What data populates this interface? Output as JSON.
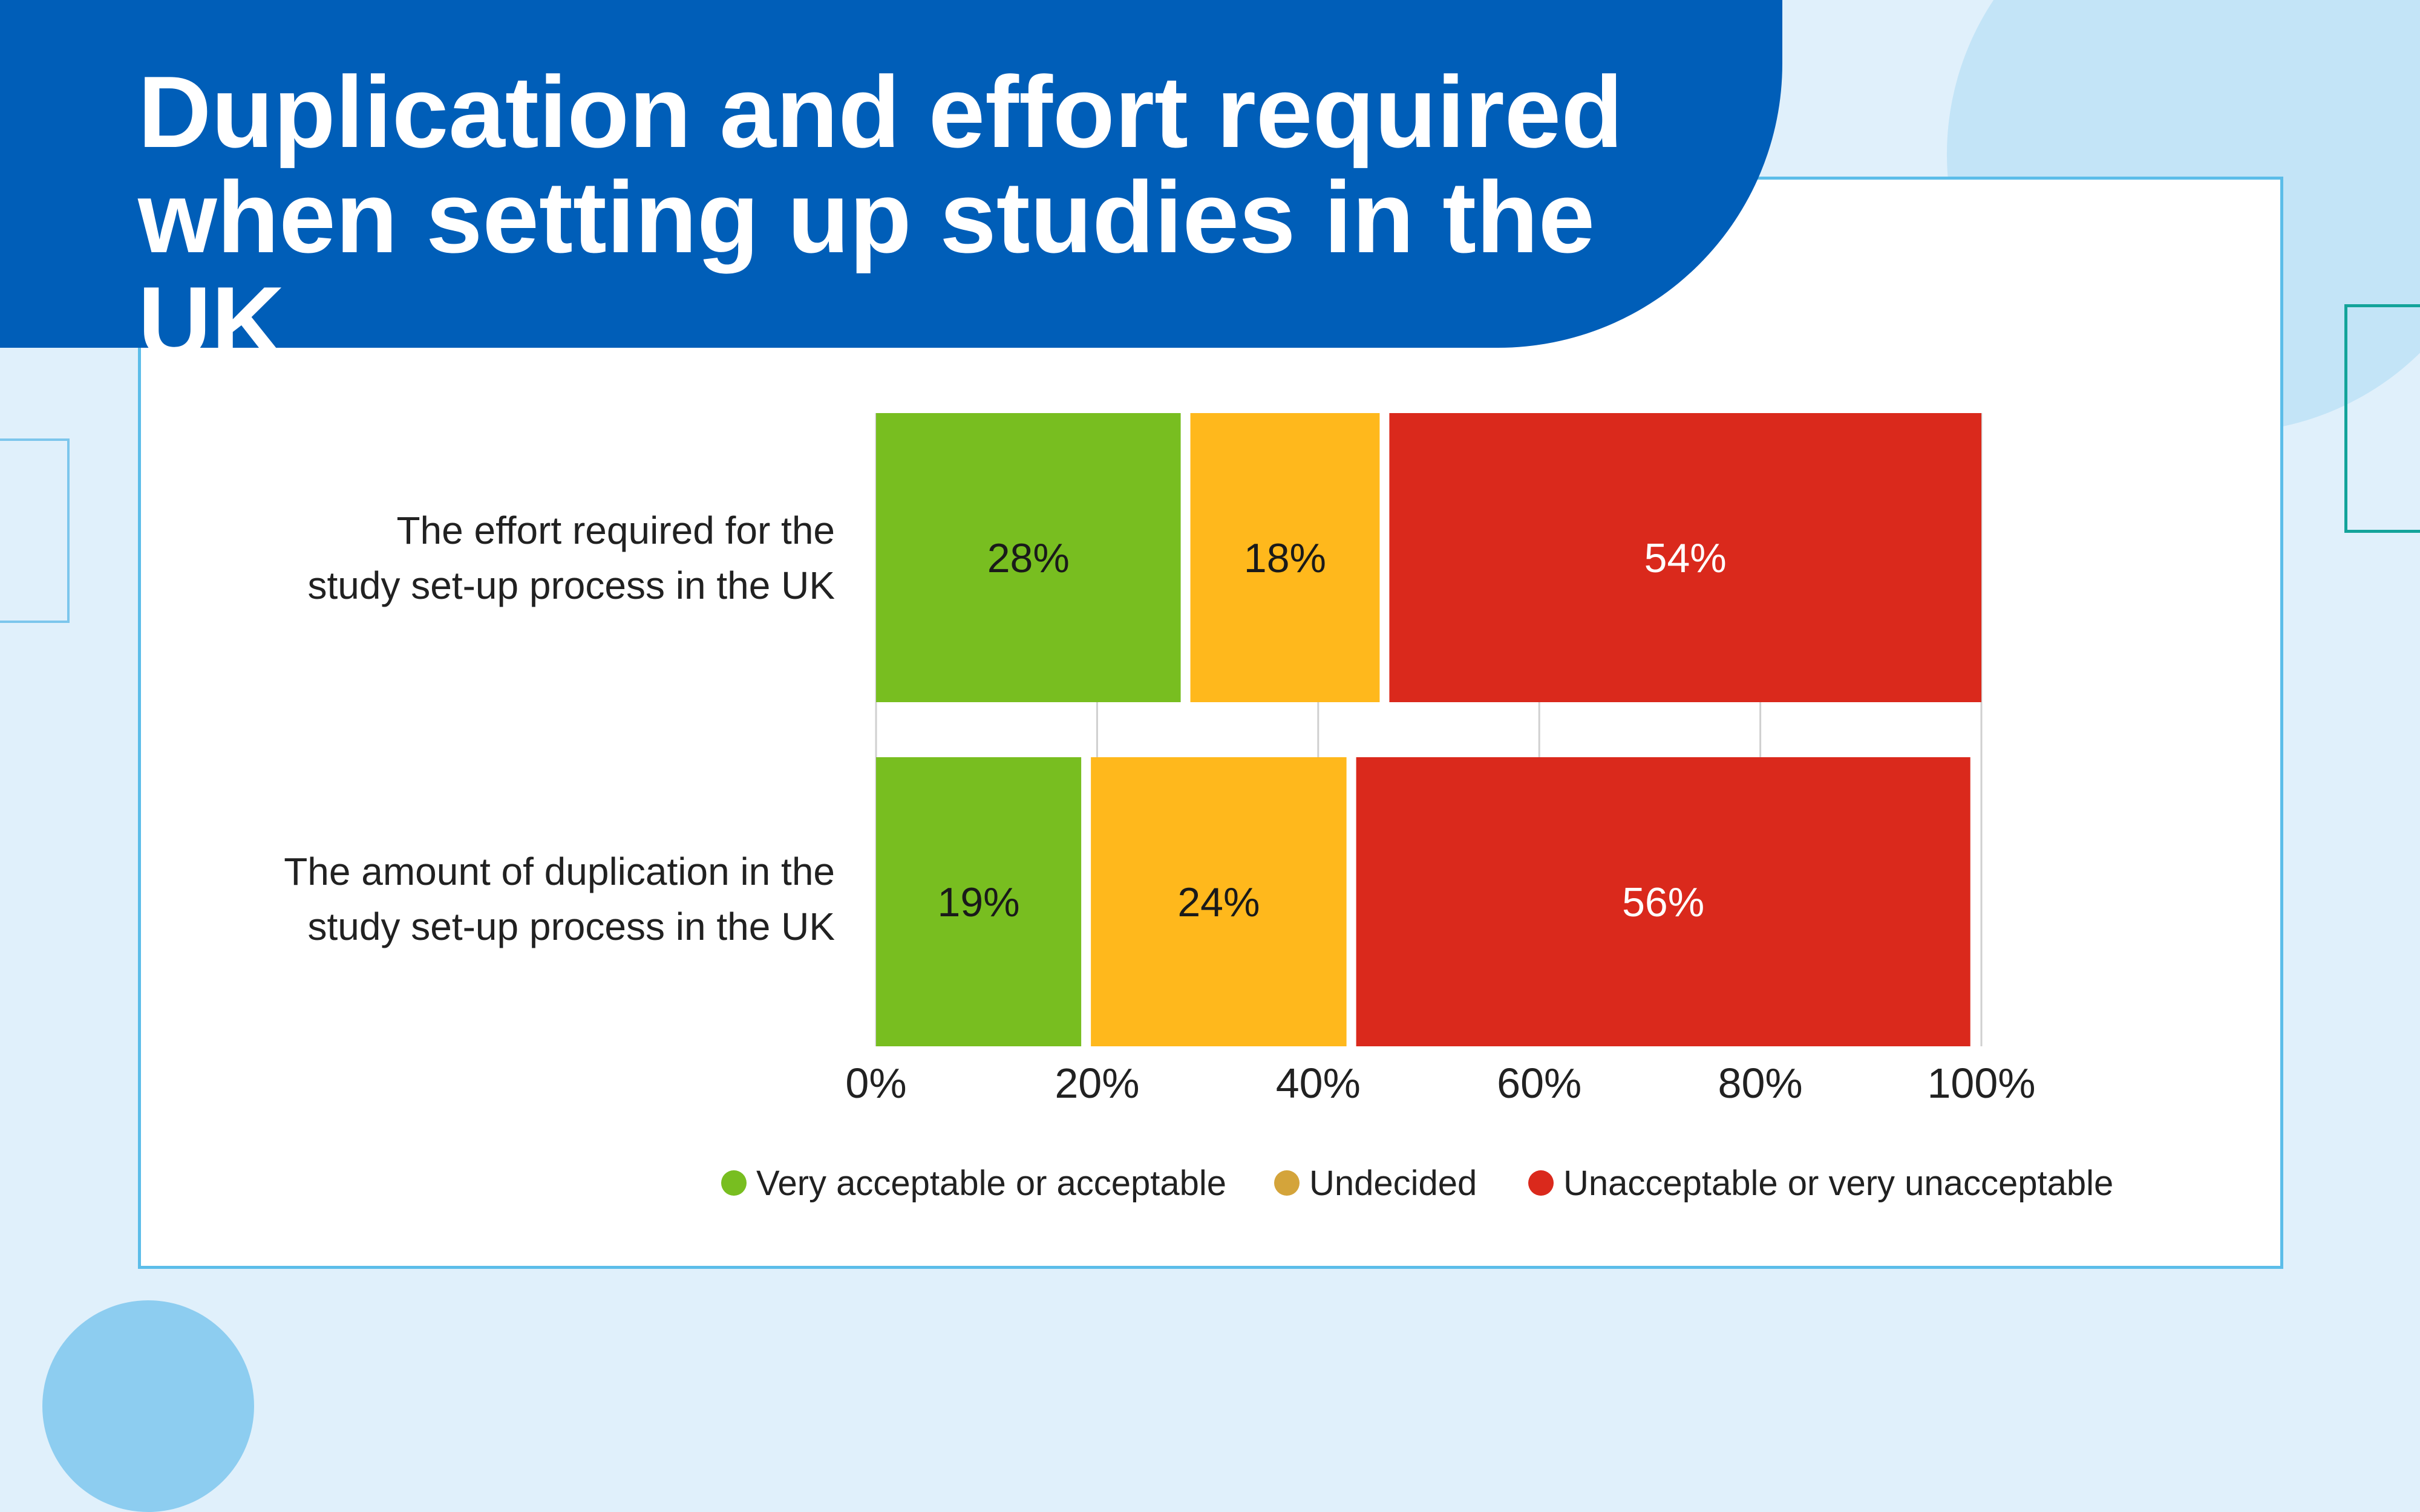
{
  "title_line1": "Duplication and effort required",
  "title_line2": "when setting up studies in the UK",
  "colors": {
    "header": "#005eb8",
    "acceptable": "#78be20",
    "undecided": "#ffb81c",
    "unacceptable": "#da291c",
    "legend_undecided_dot": "#d4a43a"
  },
  "chart_data": {
    "type": "bar",
    "orientation": "horizontal",
    "stacked": true,
    "categories": [
      "The effort required for the study set-up process in the UK",
      "The amount of duplication in the study set-up process in the UK"
    ],
    "category_lines": [
      [
        "The effort required for the",
        "study set-up process in the UK"
      ],
      [
        "The amount of duplication in the",
        "study set-up process in the UK"
      ]
    ],
    "series": [
      {
        "name": "Very acceptable or acceptable",
        "values": [
          28,
          19
        ],
        "labels": [
          "28%",
          "19%"
        ]
      },
      {
        "name": "Undecided",
        "values": [
          18,
          24
        ],
        "labels": [
          "18%",
          "24%"
        ]
      },
      {
        "name": "Unacceptable or very unacceptable",
        "values": [
          54,
          56
        ],
        "labels": [
          "54%",
          "56%"
        ]
      }
    ],
    "x_ticks": [
      "0%",
      "20%",
      "40%",
      "60%",
      "80%",
      "100%"
    ],
    "xlim": [
      0,
      100
    ],
    "grid": true,
    "legend_position": "bottom"
  }
}
